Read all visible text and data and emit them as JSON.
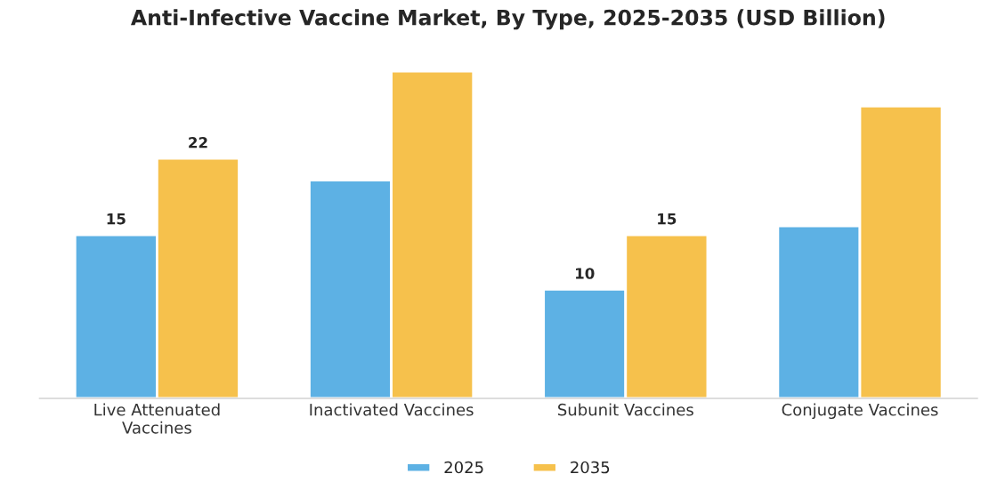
{
  "chart_data": {
    "type": "bar",
    "title": "Anti-Infective Vaccine Market, By Type, 2025-2035 (USD Billion)",
    "categories": [
      "Live Attenuated\nVaccines",
      "Inactivated Vaccines",
      "Subunit Vaccines",
      "Conjugate Vaccines"
    ],
    "series": [
      {
        "name": "2025",
        "color": "#5db1e4",
        "values": [
          15,
          20,
          10,
          15.8
        ],
        "value_labels": [
          "15",
          null,
          "10",
          null
        ]
      },
      {
        "name": "2035",
        "color": "#f6c14c",
        "values": [
          22,
          30,
          15,
          26.8
        ],
        "value_labels": [
          "22",
          null,
          "15",
          null
        ]
      }
    ],
    "legend": "bottom",
    "grid": false,
    "tick_labels": "x"
  }
}
